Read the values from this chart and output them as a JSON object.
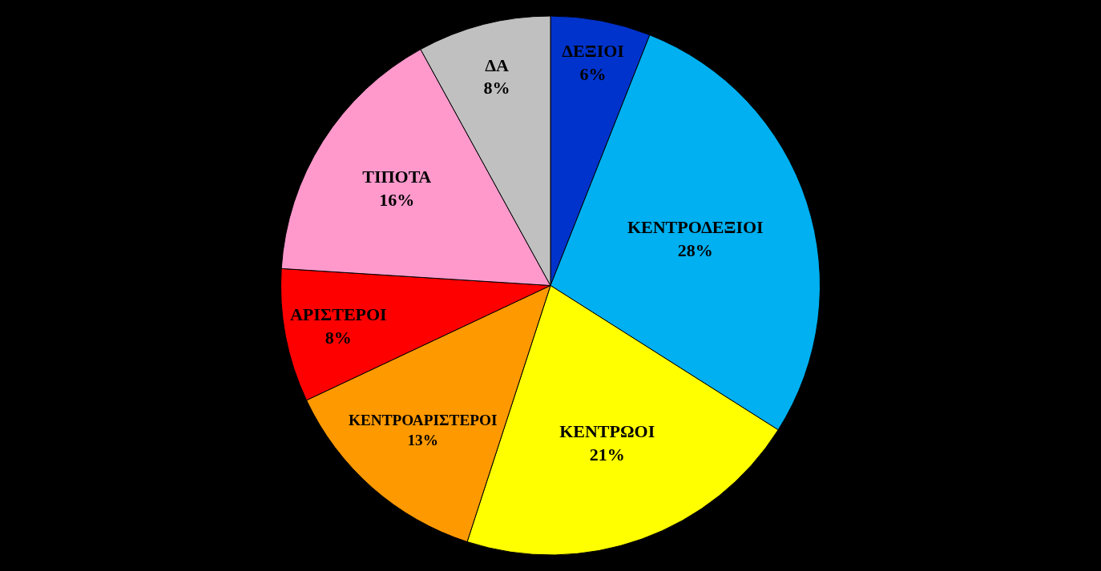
{
  "chart_data": {
    "type": "pie",
    "categories": [
      "ΔΕΞΙΟΙ",
      "ΚΕΝΤΡΟΔΕΞΙΟΙ",
      "ΚΕΝΤΡΩΟΙ",
      "ΚΕΝΤΡΟΑΡΙΣΤΕΡΟΙ",
      "ΑΡΙΣΤΕΡΟΙ",
      "ΤΙΠΟΤΑ",
      "ΔΑ"
    ],
    "values": [
      6,
      28,
      21,
      13,
      8,
      16,
      8
    ],
    "value_labels": [
      "6%",
      "28%",
      "21%",
      "13%",
      "8%",
      "16%",
      "8%"
    ],
    "colors": [
      "#0033cc",
      "#00b0f0",
      "#ffff00",
      "#ff9900",
      "#ff0000",
      "#ff99cc",
      "#c0c0c0"
    ],
    "legend": false
  }
}
